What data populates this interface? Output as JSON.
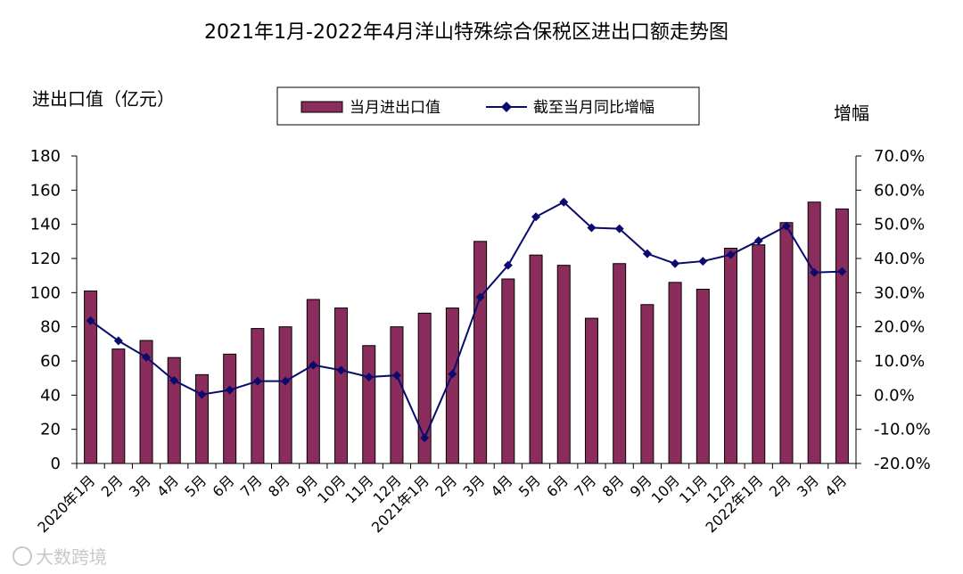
{
  "chart_data": {
    "type": "bar",
    "title": "2021年1月-2022年4月洋山特殊综合保税区进出口额走势图",
    "ylabel": "进出口值（亿元）",
    "y2label": "增幅",
    "ylim": [
      0,
      180
    ],
    "yticks": [
      0,
      20,
      40,
      60,
      80,
      100,
      120,
      140,
      160,
      180
    ],
    "y2lim": [
      -20,
      70
    ],
    "y2ticks": [
      "-20.0%",
      "-10.0%",
      "0.0%",
      "10.0%",
      "20.0%",
      "30.0%",
      "40.0%",
      "50.0%",
      "60.0%",
      "70.0%"
    ],
    "y2tick_values": [
      -20,
      -10,
      0,
      10,
      20,
      30,
      40,
      50,
      60,
      70
    ],
    "categories": [
      "2020年1月",
      "2月",
      "3月",
      "4月",
      "5月",
      "6月",
      "7月",
      "8月",
      "9月",
      "10月",
      "11月",
      "12月",
      "2021年1月",
      "2月",
      "3月",
      "4月",
      "5月",
      "6月",
      "7月",
      "8月",
      "9月",
      "10月",
      "11月",
      "12月",
      "2022年1月",
      "2月",
      "3月",
      "4月"
    ],
    "legend_placement": "top-center",
    "series": [
      {
        "name": "当月进出口值",
        "kind": "bar",
        "axis": "left",
        "color": "#8b2d5c",
        "values": [
          101,
          67,
          72,
          62,
          52,
          64,
          79,
          80,
          96,
          91,
          69,
          80,
          88,
          91,
          130,
          108,
          122,
          116,
          85,
          117,
          93,
          106,
          102,
          126,
          128,
          141,
          153,
          149
        ]
      },
      {
        "name": "截至当月同比增幅",
        "kind": "line",
        "axis": "right",
        "color": "#0b0b6e",
        "values": [
          21.8,
          15.9,
          11.1,
          4.3,
          0.2,
          1.5,
          4.1,
          4.1,
          8.8,
          7.3,
          5.3,
          5.8,
          -12.5,
          6.2,
          28.7,
          38.0,
          52.2,
          56.5,
          49.0,
          48.7,
          41.4,
          38.5,
          39.2,
          41.1,
          45.2,
          49.5,
          35.9,
          36.2
        ]
      }
    ],
    "watermark": "大数跨境"
  }
}
